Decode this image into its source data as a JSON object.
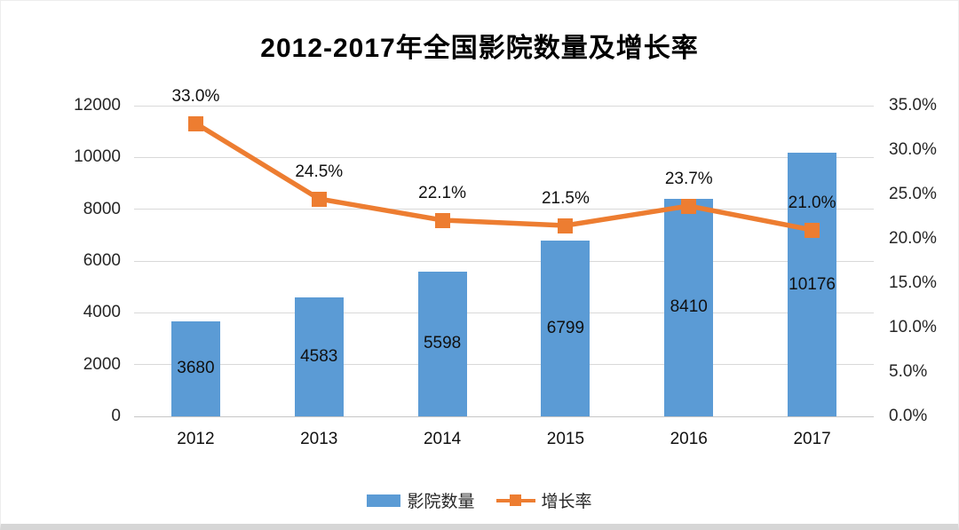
{
  "chart_data": {
    "type": "bar+line",
    "title": "2012-2017年全国影院数量及增长率",
    "categories": [
      "2012",
      "2013",
      "2014",
      "2015",
      "2016",
      "2017"
    ],
    "series": [
      {
        "name": "影院数量",
        "type": "bar",
        "axis": "left",
        "values": [
          3680,
          4583,
          5598,
          6799,
          8410,
          10176
        ],
        "labels": [
          "3680",
          "4583",
          "5598",
          "6799",
          "8410",
          "10176"
        ],
        "color": "#5B9BD5"
      },
      {
        "name": "增长率",
        "type": "line",
        "axis": "right",
        "values": [
          33.0,
          24.5,
          22.1,
          21.5,
          23.7,
          21.0
        ],
        "labels": [
          "33.0%",
          "24.5%",
          "22.1%",
          "21.5%",
          "23.7%",
          "21.0%"
        ],
        "color": "#ED7D31"
      }
    ],
    "left_axis": {
      "min": 0,
      "max": 12000,
      "step": 2000,
      "ticks": [
        "0",
        "2000",
        "4000",
        "6000",
        "8000",
        "10000",
        "12000"
      ]
    },
    "right_axis": {
      "min": 0,
      "max": 35,
      "step": 5,
      "ticks": [
        "0.0%",
        "5.0%",
        "10.0%",
        "15.0%",
        "20.0%",
        "25.0%",
        "30.0%",
        "35.0%"
      ]
    },
    "legend": [
      {
        "label": "影院数量",
        "marker": "bar",
        "color": "#5B9BD5"
      },
      {
        "label": "增长率",
        "marker": "line-square",
        "color": "#ED7D31"
      }
    ],
    "grid": true,
    "colors": {
      "bar": "#5B9BD5",
      "line": "#ED7D31",
      "gridline": "#D9D9D9",
      "axis_text": "#262626",
      "label_text": "#101010"
    }
  }
}
